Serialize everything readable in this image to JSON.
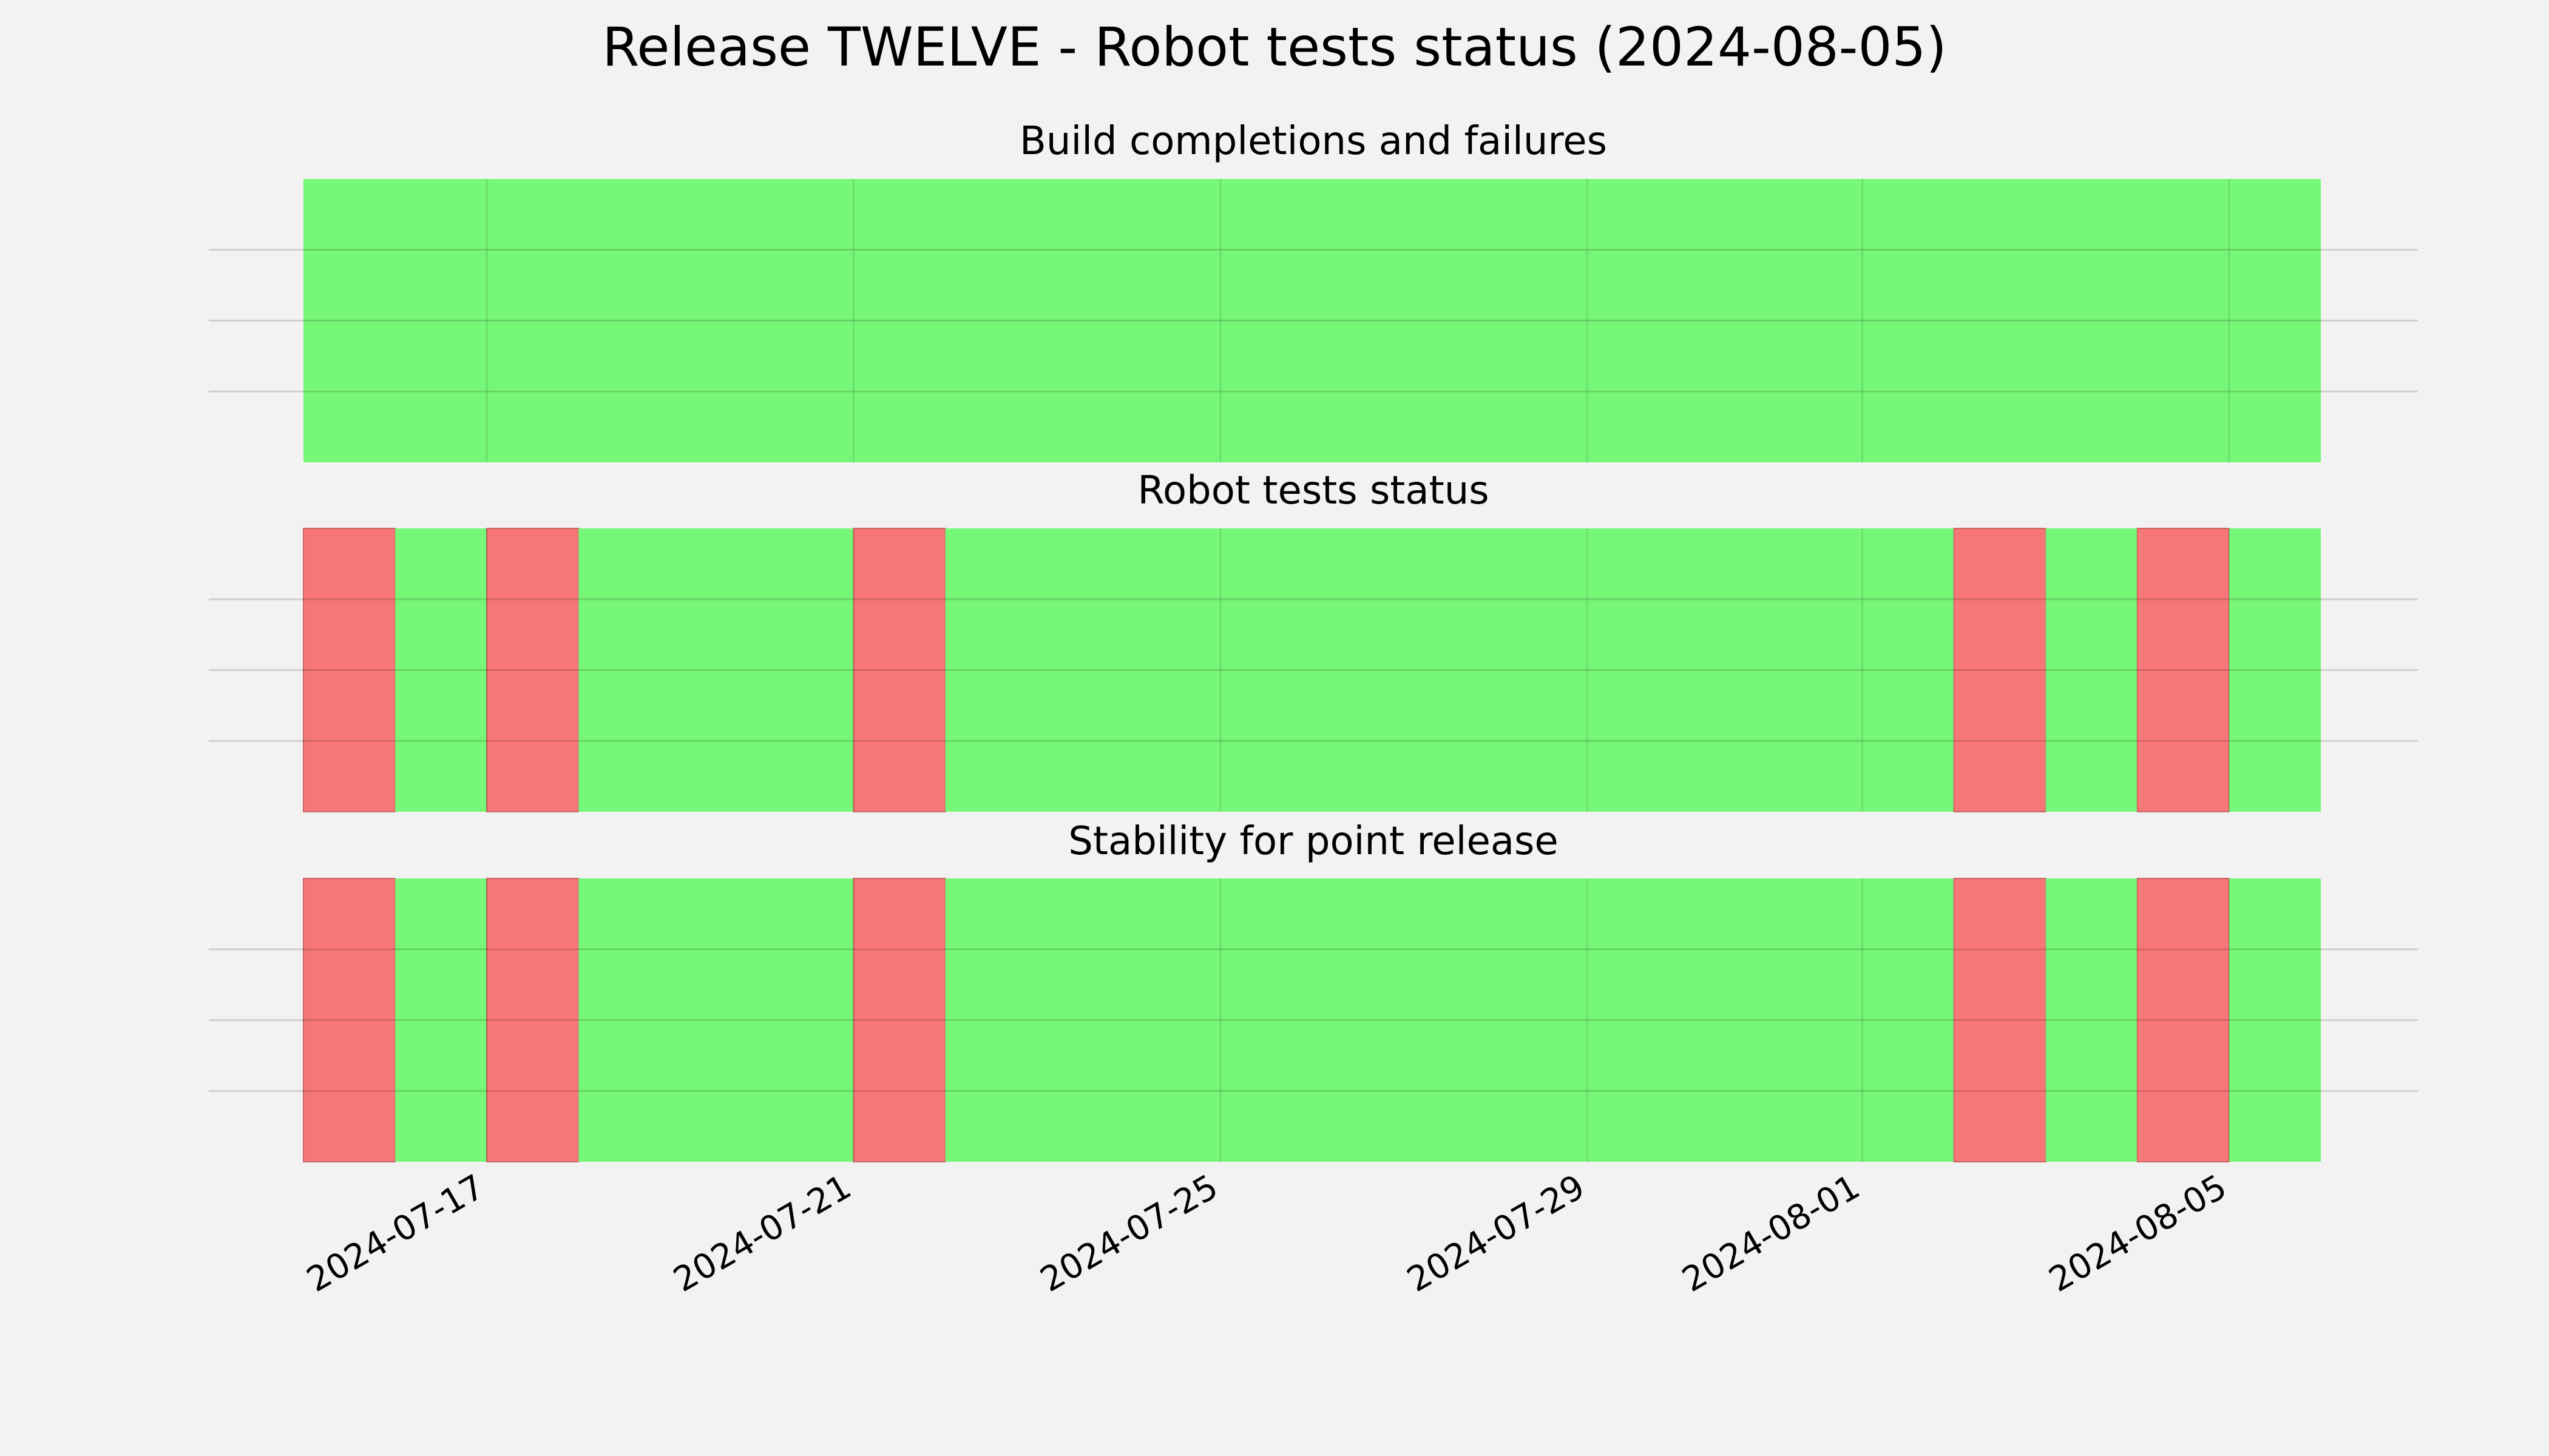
{
  "chart_data": {
    "type": "timeline",
    "title": "Release TWELVE - Robot tests status (2024-08-05)",
    "x_tick_labels": [
      "2024-07-17",
      "2024-07-21",
      "2024-07-25",
      "2024-07-29",
      "2024-08-01",
      "2024-08-05"
    ],
    "x_tick_dates": [
      "2024-07-17",
      "2024-07-21",
      "2024-07-25",
      "2024-07-29",
      "2024-08-01",
      "2024-08-05"
    ],
    "xlim": [
      "2024-07-15",
      "2024-08-06"
    ],
    "grid": true,
    "colors": {
      "pass": "#77f777",
      "fail": "#f77777",
      "background": "#f2f2f2",
      "grid": "#cccccc"
    },
    "panels": [
      {
        "title": "Build completions and failures",
        "segments": [
          {
            "start": "2024-07-15",
            "end": "2024-08-06",
            "status": "pass"
          }
        ]
      },
      {
        "title": "Robot tests status",
        "segments": [
          {
            "start": "2024-07-15",
            "end": "2024-07-16",
            "status": "fail"
          },
          {
            "start": "2024-07-16",
            "end": "2024-07-17",
            "status": "pass"
          },
          {
            "start": "2024-07-17",
            "end": "2024-07-18",
            "status": "fail"
          },
          {
            "start": "2024-07-18",
            "end": "2024-07-21",
            "status": "pass"
          },
          {
            "start": "2024-07-21",
            "end": "2024-07-22",
            "status": "fail"
          },
          {
            "start": "2024-07-22",
            "end": "2024-08-02",
            "status": "pass"
          },
          {
            "start": "2024-08-02",
            "end": "2024-08-03",
            "status": "fail"
          },
          {
            "start": "2024-08-03",
            "end": "2024-08-04",
            "status": "pass"
          },
          {
            "start": "2024-08-04",
            "end": "2024-08-05",
            "status": "fail"
          },
          {
            "start": "2024-08-05",
            "end": "2024-08-06",
            "status": "pass"
          }
        ]
      },
      {
        "title": "Stability for point release",
        "segments": [
          {
            "start": "2024-07-15",
            "end": "2024-07-16",
            "status": "fail"
          },
          {
            "start": "2024-07-16",
            "end": "2024-07-17",
            "status": "pass"
          },
          {
            "start": "2024-07-17",
            "end": "2024-07-18",
            "status": "fail"
          },
          {
            "start": "2024-07-18",
            "end": "2024-07-21",
            "status": "pass"
          },
          {
            "start": "2024-07-21",
            "end": "2024-07-22",
            "status": "fail"
          },
          {
            "start": "2024-07-22",
            "end": "2024-08-02",
            "status": "pass"
          },
          {
            "start": "2024-08-02",
            "end": "2024-08-03",
            "status": "fail"
          },
          {
            "start": "2024-08-03",
            "end": "2024-08-04",
            "status": "pass"
          },
          {
            "start": "2024-08-04",
            "end": "2024-08-05",
            "status": "fail"
          },
          {
            "start": "2024-08-05",
            "end": "2024-08-06",
            "status": "pass"
          }
        ]
      }
    ]
  }
}
